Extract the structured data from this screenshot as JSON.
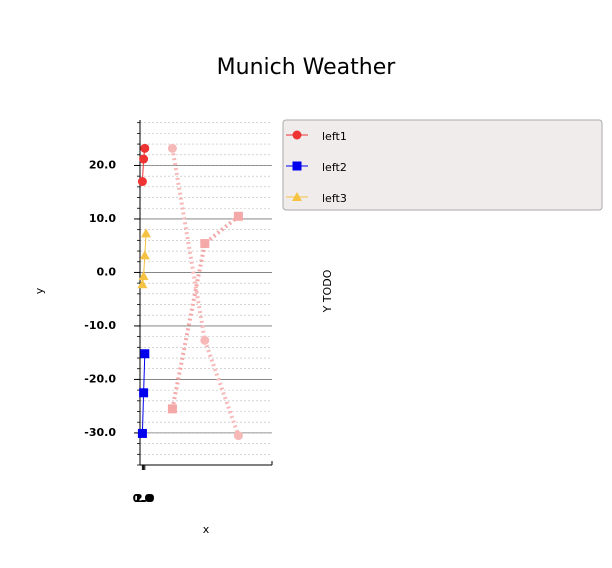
{
  "chart_data": {
    "type": "line",
    "title": "Munich Weather",
    "xlabel": "x",
    "ylabel": "y",
    "y2label": "Y TODO",
    "xlim": [
      -2,
      108
    ],
    "ylim": [
      -36,
      28.5
    ],
    "xticks": [
      {
        "value": 2,
        "label": "2.0"
      },
      {
        "value": 1,
        "label": "1.0"
      },
      {
        "value": 0,
        "label": "0.0"
      }
    ],
    "yticks": [
      {
        "value": -30,
        "label": "-30.0"
      },
      {
        "value": -20,
        "label": "-20.0"
      },
      {
        "value": -10,
        "label": "-10.0"
      },
      {
        "value": 0,
        "label": "0.0"
      },
      {
        "value": 10,
        "label": "10.0"
      },
      {
        "value": 20,
        "label": "20.0"
      }
    ],
    "grid": true,
    "series": [
      {
        "name": "left1",
        "color": "#ee3333",
        "marker": "circle",
        "x": [
          0,
          1,
          2
        ],
        "values": [
          17.0,
          21.2,
          23.2
        ]
      },
      {
        "name": "left2",
        "color": "#0000ee",
        "marker": "square",
        "x": [
          0,
          1,
          2
        ],
        "values": [
          -30.1,
          -22.5,
          -15.2
        ]
      },
      {
        "name": "left3",
        "color": "#f5c242",
        "marker": "triangle",
        "x": [
          0,
          1,
          2,
          3
        ],
        "values": [
          -2.2,
          -0.7,
          3.2,
          7.3
        ]
      },
      {
        "color": "#f7b8b8",
        "marker": "circle",
        "dotted": true,
        "x": [
          25,
          52,
          80
        ],
        "values": [
          23.2,
          -12.7,
          -30.5
        ]
      },
      {
        "color": "#f4a8a8",
        "marker": "square",
        "dotted": true,
        "x": [
          25,
          52,
          80
        ],
        "values": [
          -25.5,
          5.4,
          10.5
        ]
      }
    ]
  }
}
